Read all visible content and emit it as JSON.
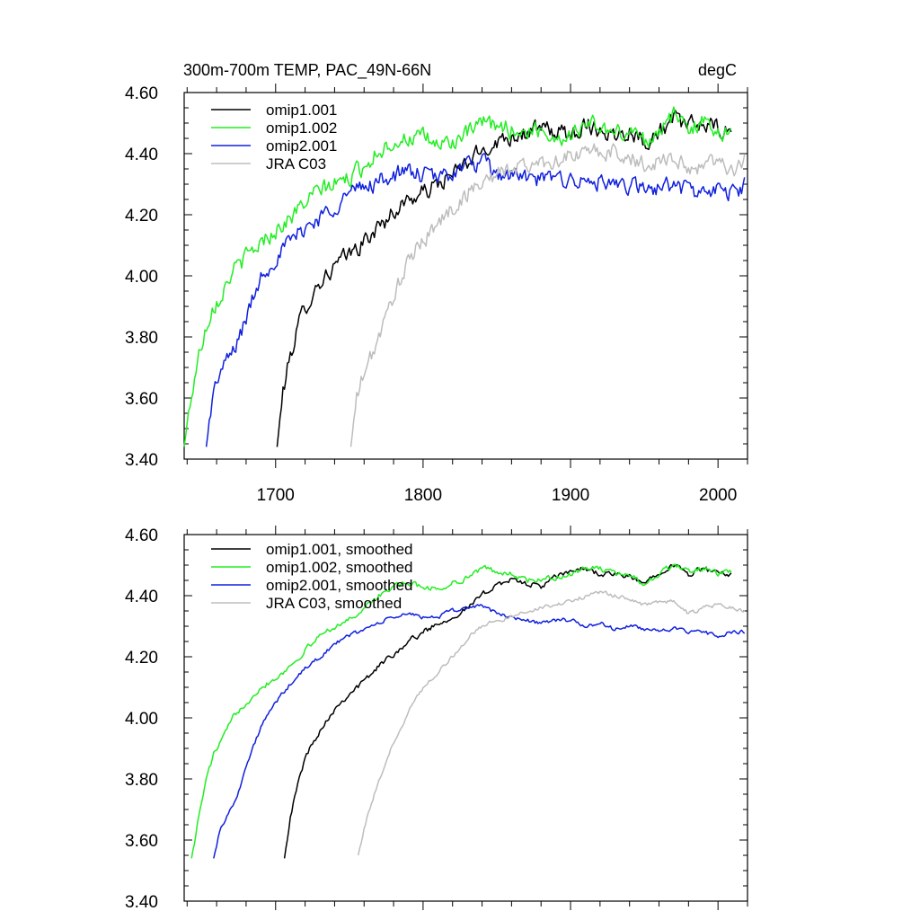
{
  "header": {
    "title": "300m-700m TEMP, PAC_49N-66N",
    "units": "degC"
  },
  "colors": {
    "omip1_001": "#000000",
    "omip1_002": "#22ee22",
    "omip2_001": "#1020dd",
    "jra_c03": "#bdbdbd"
  },
  "chart_data": [
    {
      "type": "line",
      "title": "300m-700m TEMP, PAC_49N-66N",
      "units": "degC",
      "xlim": [
        1638,
        2020
      ],
      "ylim": [
        3.4,
        4.6
      ],
      "xticks": [
        1700,
        1800,
        1900,
        2000
      ],
      "xtick_labels": [
        "1700",
        "1800",
        "1900",
        "2000"
      ],
      "yticks": [
        3.4,
        3.6,
        3.8,
        4.0,
        4.2,
        4.4,
        4.6
      ],
      "ytick_labels": [
        "3.40",
        "3.60",
        "3.80",
        "4.00",
        "4.20",
        "4.40",
        "4.60"
      ],
      "legend_position": "top-left",
      "series": [
        {
          "key": "omip1_001",
          "name": "omip1.001",
          "x": [
            1701,
            1705,
            1710,
            1715,
            1720,
            1730,
            1740,
            1750,
            1760,
            1770,
            1780,
            1790,
            1800,
            1810,
            1820,
            1830,
            1840,
            1850,
            1860,
            1870,
            1880,
            1890,
            1900,
            1910,
            1920,
            1930,
            1940,
            1950,
            1960,
            1970,
            1980,
            1990,
            2000,
            2009
          ],
          "y": [
            3.44,
            3.62,
            3.74,
            3.83,
            3.9,
            3.98,
            4.03,
            4.07,
            4.11,
            4.16,
            4.21,
            4.25,
            4.27,
            4.3,
            4.33,
            4.37,
            4.41,
            4.44,
            4.46,
            4.47,
            4.48,
            4.47,
            4.46,
            4.5,
            4.48,
            4.46,
            4.48,
            4.44,
            4.47,
            4.51,
            4.49,
            4.5,
            4.48,
            4.46
          ],
          "noise": 0.025
        },
        {
          "key": "omip1_002",
          "name": "omip1.002",
          "x": [
            1638,
            1642,
            1647,
            1652,
            1657,
            1662,
            1670,
            1680,
            1690,
            1700,
            1710,
            1720,
            1730,
            1740,
            1750,
            1760,
            1770,
            1780,
            1790,
            1800,
            1810,
            1820,
            1830,
            1840,
            1850,
            1860,
            1870,
            1880,
            1890,
            1900,
            1910,
            1920,
            1930,
            1940,
            1950,
            1960,
            1970,
            1980,
            1990,
            2000,
            2009
          ],
          "y": [
            3.44,
            3.58,
            3.72,
            3.82,
            3.9,
            3.93,
            4.01,
            4.06,
            4.11,
            4.15,
            4.19,
            4.24,
            4.28,
            4.3,
            4.32,
            4.36,
            4.41,
            4.44,
            4.45,
            4.45,
            4.43,
            4.44,
            4.46,
            4.5,
            4.49,
            4.48,
            4.47,
            4.48,
            4.45,
            4.46,
            4.5,
            4.49,
            4.46,
            4.48,
            4.44,
            4.48,
            4.52,
            4.49,
            4.5,
            4.48,
            4.46
          ],
          "noise": 0.025
        },
        {
          "key": "omip2_001",
          "name": "omip2.001",
          "x": [
            1653,
            1657,
            1662,
            1667,
            1672,
            1680,
            1690,
            1700,
            1710,
            1720,
            1730,
            1740,
            1750,
            1760,
            1770,
            1780,
            1790,
            1800,
            1810,
            1820,
            1830,
            1840,
            1850,
            1860,
            1870,
            1880,
            1890,
            1900,
            1910,
            1920,
            1930,
            1940,
            1950,
            1960,
            1970,
            1980,
            1990,
            2000,
            2010,
            2018
          ],
          "y": [
            3.44,
            3.6,
            3.68,
            3.72,
            3.76,
            3.86,
            4.0,
            4.06,
            4.11,
            4.16,
            4.19,
            4.23,
            4.27,
            4.29,
            4.31,
            4.33,
            4.34,
            4.33,
            4.32,
            4.34,
            4.36,
            4.37,
            4.33,
            4.33,
            4.32,
            4.31,
            4.32,
            4.32,
            4.3,
            4.31,
            4.28,
            4.3,
            4.28,
            4.29,
            4.3,
            4.28,
            4.27,
            4.28,
            4.27,
            4.3
          ],
          "noise": 0.025
        },
        {
          "key": "jra_c03",
          "name": "JRA C03",
          "x": [
            1751,
            1755,
            1760,
            1765,
            1770,
            1775,
            1780,
            1790,
            1800,
            1810,
            1820,
            1830,
            1840,
            1850,
            1860,
            1870,
            1880,
            1890,
            1900,
            1910,
            1920,
            1930,
            1940,
            1950,
            1960,
            1970,
            1980,
            1990,
            2000,
            2010,
            2018
          ],
          "y": [
            3.44,
            3.6,
            3.68,
            3.74,
            3.8,
            3.86,
            3.94,
            4.04,
            4.12,
            4.17,
            4.22,
            4.27,
            4.31,
            4.33,
            4.35,
            4.36,
            4.37,
            4.38,
            4.39,
            4.4,
            4.41,
            4.4,
            4.39,
            4.36,
            4.38,
            4.39,
            4.34,
            4.37,
            4.38,
            4.35,
            4.37
          ],
          "noise": 0.025
        }
      ]
    },
    {
      "type": "line",
      "title": "",
      "xlim": [
        1638,
        2020
      ],
      "ylim": [
        3.4,
        4.6
      ],
      "xticks": [
        1700,
        1800,
        1900,
        2000
      ],
      "xtick_labels": [],
      "yticks": [
        3.4,
        3.6,
        3.8,
        4.0,
        4.2,
        4.4,
        4.6
      ],
      "ytick_labels": [
        "3.40",
        "3.60",
        "3.80",
        "4.00",
        "4.20",
        "4.40",
        "4.60"
      ],
      "legend_position": "top-left",
      "series": [
        {
          "key": "omip1_001",
          "name": "omip1.001, smoothed",
          "x": [
            1706,
            1710,
            1715,
            1720,
            1730,
            1740,
            1750,
            1760,
            1770,
            1780,
            1790,
            1800,
            1810,
            1820,
            1830,
            1840,
            1850,
            1860,
            1870,
            1880,
            1890,
            1900,
            1910,
            1920,
            1930,
            1940,
            1950,
            1960,
            1970,
            1980,
            1990,
            2000,
            2009
          ],
          "y": [
            3.54,
            3.68,
            3.78,
            3.87,
            3.96,
            4.03,
            4.08,
            4.12,
            4.17,
            4.21,
            4.25,
            4.28,
            4.31,
            4.33,
            4.36,
            4.4,
            4.44,
            4.45,
            4.44,
            4.43,
            4.46,
            4.48,
            4.49,
            4.47,
            4.47,
            4.46,
            4.44,
            4.48,
            4.5,
            4.47,
            4.49,
            4.47,
            4.47
          ],
          "noise": 0.008
        },
        {
          "key": "omip1_002",
          "name": "omip1.002, smoothed",
          "x": [
            1643,
            1648,
            1653,
            1658,
            1665,
            1672,
            1680,
            1690,
            1700,
            1710,
            1720,
            1730,
            1740,
            1750,
            1760,
            1770,
            1780,
            1790,
            1800,
            1810,
            1820,
            1830,
            1840,
            1850,
            1860,
            1870,
            1880,
            1890,
            1900,
            1910,
            1920,
            1930,
            1940,
            1950,
            1960,
            1970,
            1980,
            1990,
            2000,
            2009
          ],
          "y": [
            3.54,
            3.68,
            3.8,
            3.88,
            3.94,
            4.01,
            4.05,
            4.1,
            4.13,
            4.17,
            4.22,
            4.27,
            4.3,
            4.32,
            4.36,
            4.4,
            4.43,
            4.44,
            4.43,
            4.42,
            4.44,
            4.46,
            4.49,
            4.48,
            4.47,
            4.45,
            4.45,
            4.46,
            4.47,
            4.49,
            4.49,
            4.47,
            4.47,
            4.44,
            4.47,
            4.5,
            4.48,
            4.49,
            4.47,
            4.48
          ],
          "noise": 0.008
        },
        {
          "key": "omip2_001",
          "name": "omip2.001, smoothed",
          "x": [
            1658,
            1662,
            1667,
            1672,
            1680,
            1690,
            1700,
            1710,
            1720,
            1730,
            1740,
            1750,
            1760,
            1770,
            1780,
            1790,
            1800,
            1810,
            1820,
            1830,
            1840,
            1850,
            1860,
            1870,
            1880,
            1890,
            1900,
            1910,
            1920,
            1930,
            1940,
            1950,
            1960,
            1970,
            1980,
            1990,
            2000,
            2010,
            2018
          ],
          "y": [
            3.54,
            3.63,
            3.68,
            3.72,
            3.84,
            3.97,
            4.05,
            4.11,
            4.16,
            4.2,
            4.24,
            4.27,
            4.29,
            4.31,
            4.33,
            4.34,
            4.33,
            4.33,
            4.35,
            4.36,
            4.37,
            4.34,
            4.33,
            4.32,
            4.31,
            4.32,
            4.32,
            4.3,
            4.31,
            4.29,
            4.3,
            4.29,
            4.29,
            4.29,
            4.28,
            4.28,
            4.27,
            4.28,
            4.28
          ],
          "noise": 0.006
        },
        {
          "key": "jra_c03",
          "name": "JRA C03, smoothed",
          "x": [
            1756,
            1760,
            1765,
            1770,
            1775,
            1780,
            1790,
            1800,
            1810,
            1820,
            1830,
            1840,
            1850,
            1860,
            1870,
            1880,
            1890,
            1900,
            1910,
            1920,
            1930,
            1940,
            1950,
            1960,
            1970,
            1980,
            1990,
            2000,
            2010,
            2018
          ],
          "y": [
            3.55,
            3.64,
            3.72,
            3.79,
            3.85,
            3.92,
            4.02,
            4.1,
            4.15,
            4.2,
            4.26,
            4.3,
            4.32,
            4.33,
            4.35,
            4.36,
            4.37,
            4.38,
            4.4,
            4.41,
            4.4,
            4.39,
            4.37,
            4.38,
            4.38,
            4.34,
            4.36,
            4.37,
            4.36,
            4.35
          ],
          "noise": 0.006
        }
      ]
    }
  ]
}
